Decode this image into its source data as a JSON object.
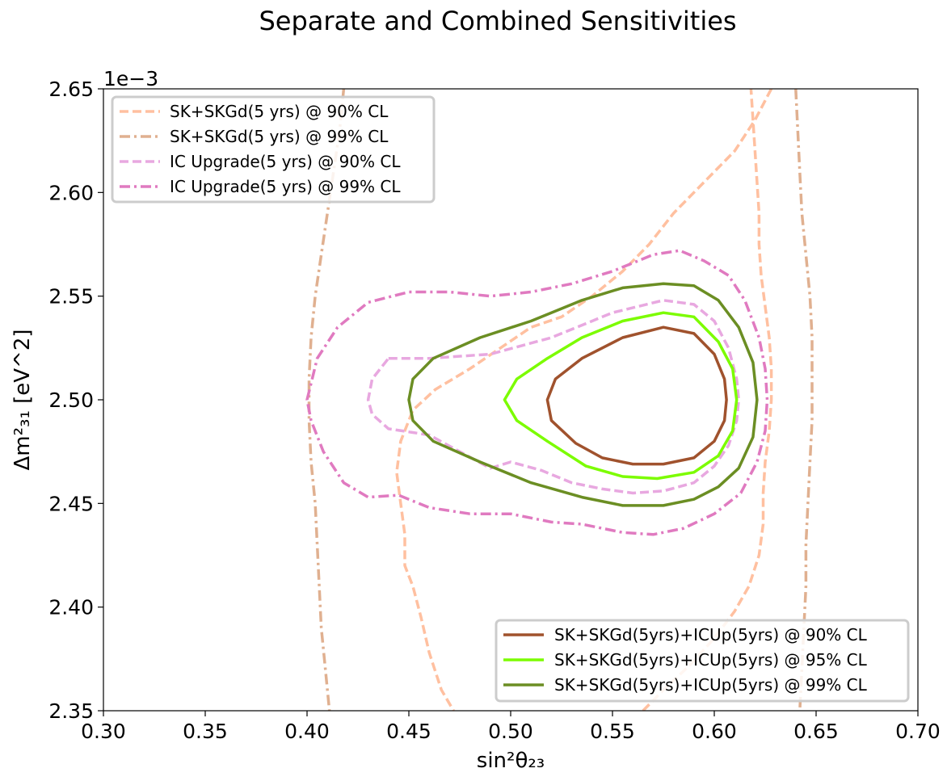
{
  "chart_data": {
    "type": "line",
    "title": "Separate and Combined Sensitivities",
    "xlabel": "sin²θ₂₃",
    "ylabel": "Δm²₃₁ [eV^2]",
    "y_offset_text": "1e−3",
    "xlim": [
      0.3,
      0.7
    ],
    "ylim": [
      2.35,
      2.65
    ],
    "y_scale_factor": 0.001,
    "xticks": [
      "0.30",
      "0.35",
      "0.40",
      "0.45",
      "0.50",
      "0.55",
      "0.60",
      "0.65",
      "0.70"
    ],
    "yticks": [
      "2.35",
      "2.40",
      "2.45",
      "2.50",
      "2.55",
      "2.60",
      "2.65"
    ],
    "grid": false,
    "legends": [
      {
        "placement": "upper left",
        "entries": [
          "SK+SKGd(5 yrs) @ 90% CL",
          "SK+SKGd(5 yrs) @ 99% CL",
          "IC Upgrade(5 yrs) @ 90% CL",
          "IC Upgrade(5 yrs) @ 99% CL"
        ]
      },
      {
        "placement": "lower right",
        "entries": [
          "SK+SKGd(5yrs)+ICUp(5yrs) @ 90% CL",
          "SK+SKGd(5yrs)+ICUp(5yrs) @ 95% CL",
          "SK+SKGd(5yrs)+ICUp(5yrs) @ 99% CL"
        ]
      }
    ],
    "series": [
      {
        "name": "SK+SKGd(5 yrs) @ 90% CL",
        "color": "#ffc0a0",
        "dash": "dashed",
        "closed": false,
        "segments": [
          [
            [
              0.628,
              2.65
            ],
            [
              0.62,
              2.635
            ],
            [
              0.61,
              2.62
            ],
            [
              0.595,
              2.605
            ],
            [
              0.58,
              2.59
            ],
            [
              0.568,
              2.575
            ],
            [
              0.555,
              2.562
            ],
            [
              0.54,
              2.55
            ],
            [
              0.525,
              2.54
            ],
            [
              0.51,
              2.535
            ],
            [
              0.495,
              2.525
            ],
            [
              0.48,
              2.515
            ],
            [
              0.463,
              2.505
            ],
            [
              0.452,
              2.495
            ],
            [
              0.446,
              2.48
            ],
            [
              0.444,
              2.465
            ],
            [
              0.446,
              2.45
            ],
            [
              0.448,
              2.435
            ],
            [
              0.448,
              2.42
            ],
            [
              0.452,
              2.41
            ],
            [
              0.456,
              2.395
            ],
            [
              0.46,
              2.378
            ],
            [
              0.466,
              2.36
            ],
            [
              0.472,
              2.35
            ]
          ],
          [
            [
              0.565,
              2.35
            ],
            [
              0.575,
              2.36
            ],
            [
              0.588,
              2.372
            ],
            [
              0.6,
              2.385
            ],
            [
              0.61,
              2.398
            ],
            [
              0.617,
              2.41
            ],
            [
              0.622,
              2.425
            ],
            [
              0.624,
              2.44
            ],
            [
              0.624,
              2.455
            ],
            [
              0.625,
              2.47
            ],
            [
              0.627,
              2.485
            ],
            [
              0.628,
              2.5
            ],
            [
              0.628,
              2.515
            ],
            [
              0.627,
              2.53
            ],
            [
              0.625,
              2.545
            ],
            [
              0.623,
              2.56
            ],
            [
              0.622,
              2.575
            ],
            [
              0.622,
              2.59
            ],
            [
              0.621,
              2.605
            ],
            [
              0.62,
              2.62
            ],
            [
              0.619,
              2.635
            ],
            [
              0.618,
              2.65
            ]
          ]
        ]
      },
      {
        "name": "SK+SKGd(5 yrs) @ 99% CL",
        "color": "#e0b090",
        "dash": "dashdot",
        "closed": false,
        "segments": [
          [
            [
              0.418,
              2.65
            ],
            [
              0.416,
              2.63
            ],
            [
              0.413,
              2.61
            ],
            [
              0.41,
              2.59
            ],
            [
              0.407,
              2.57
            ],
            [
              0.404,
              2.55
            ],
            [
              0.402,
              2.53
            ],
            [
              0.401,
              2.51
            ],
            [
              0.401,
              2.49
            ],
            [
              0.402,
              2.47
            ],
            [
              0.404,
              2.45
            ],
            [
              0.405,
              2.43
            ],
            [
              0.406,
              2.41
            ],
            [
              0.407,
              2.39
            ],
            [
              0.409,
              2.37
            ],
            [
              0.411,
              2.35
            ]
          ],
          [
            [
              0.64,
              2.65
            ],
            [
              0.641,
              2.63
            ],
            [
              0.642,
              2.61
            ],
            [
              0.643,
              2.59
            ],
            [
              0.645,
              2.57
            ],
            [
              0.647,
              2.55
            ],
            [
              0.648,
              2.53
            ],
            [
              0.648,
              2.51
            ],
            [
              0.648,
              2.49
            ],
            [
              0.647,
              2.47
            ],
            [
              0.646,
              2.45
            ],
            [
              0.645,
              2.43
            ],
            [
              0.645,
              2.41
            ],
            [
              0.644,
              2.39
            ],
            [
              0.643,
              2.37
            ],
            [
              0.642,
              2.35
            ]
          ]
        ]
      },
      {
        "name": "IC Upgrade(5 yrs) @ 90% CL",
        "color": "#e8a8e0",
        "dash": "dashed",
        "closed": true,
        "segments": [
          [
            [
              0.44,
              2.52
            ],
            [
              0.46,
              2.52
            ],
            [
              0.49,
              2.522
            ],
            [
              0.52,
              2.53
            ],
            [
              0.55,
              2.542
            ],
            [
              0.575,
              2.548
            ],
            [
              0.59,
              2.546
            ],
            [
              0.6,
              2.538
            ],
            [
              0.607,
              2.525
            ],
            [
              0.611,
              2.51
            ],
            [
              0.612,
              2.5
            ],
            [
              0.611,
              2.49
            ],
            [
              0.607,
              2.478
            ],
            [
              0.6,
              2.468
            ],
            [
              0.59,
              2.46
            ],
            [
              0.575,
              2.456
            ],
            [
              0.56,
              2.455
            ],
            [
              0.545,
              2.457
            ],
            [
              0.53,
              2.46
            ],
            [
              0.515,
              2.466
            ],
            [
              0.5,
              2.47
            ],
            [
              0.49,
              2.467
            ],
            [
              0.475,
              2.475
            ],
            [
              0.46,
              2.483
            ],
            [
              0.44,
              2.486
            ],
            [
              0.432,
              2.493
            ],
            [
              0.43,
              2.5
            ],
            [
              0.432,
              2.51
            ]
          ]
        ]
      },
      {
        "name": "IC Upgrade(5 yrs) @ 99% CL",
        "color": "#e07ac0",
        "dash": "dashdot",
        "closed": true,
        "segments": [
          [
            [
              0.4,
              2.5
            ],
            [
              0.405,
              2.52
            ],
            [
              0.415,
              2.535
            ],
            [
              0.43,
              2.547
            ],
            [
              0.45,
              2.552
            ],
            [
              0.47,
              2.552
            ],
            [
              0.49,
              2.55
            ],
            [
              0.51,
              2.552
            ],
            [
              0.53,
              2.556
            ],
            [
              0.55,
              2.562
            ],
            [
              0.57,
              2.57
            ],
            [
              0.583,
              2.572
            ],
            [
              0.595,
              2.567
            ],
            [
              0.607,
              2.56
            ],
            [
              0.615,
              2.548
            ],
            [
              0.622,
              2.53
            ],
            [
              0.625,
              2.515
            ],
            [
              0.626,
              2.5
            ],
            [
              0.625,
              2.485
            ],
            [
              0.621,
              2.47
            ],
            [
              0.613,
              2.455
            ],
            [
              0.6,
              2.445
            ],
            [
              0.585,
              2.438
            ],
            [
              0.57,
              2.435
            ],
            [
              0.555,
              2.436
            ],
            [
              0.535,
              2.44
            ],
            [
              0.52,
              2.441
            ],
            [
              0.5,
              2.445
            ],
            [
              0.48,
              2.445
            ],
            [
              0.46,
              2.448
            ],
            [
              0.445,
              2.454
            ],
            [
              0.43,
              2.453
            ],
            [
              0.418,
              2.46
            ],
            [
              0.408,
              2.475
            ],
            [
              0.402,
              2.49
            ]
          ]
        ]
      },
      {
        "name": "SK+SKGd(5yrs)+ICUp(5yrs) @ 90% CL",
        "color": "#a0522d",
        "dash": "solid",
        "closed": true,
        "segments": [
          [
            [
              0.518,
              2.5
            ],
            [
              0.522,
              2.51
            ],
            [
              0.535,
              2.52
            ],
            [
              0.555,
              2.53
            ],
            [
              0.575,
              2.535
            ],
            [
              0.59,
              2.532
            ],
            [
              0.6,
              2.522
            ],
            [
              0.605,
              2.51
            ],
            [
              0.606,
              2.5
            ],
            [
              0.605,
              2.49
            ],
            [
              0.6,
              2.48
            ],
            [
              0.59,
              2.472
            ],
            [
              0.575,
              2.469
            ],
            [
              0.56,
              2.469
            ],
            [
              0.545,
              2.472
            ],
            [
              0.532,
              2.479
            ],
            [
              0.52,
              2.49
            ]
          ]
        ]
      },
      {
        "name": "SK+SKGd(5yrs)+ICUp(5yrs) @ 95% CL",
        "color": "#7cfc00",
        "dash": "solid",
        "closed": true,
        "segments": [
          [
            [
              0.497,
              2.5
            ],
            [
              0.503,
              2.51
            ],
            [
              0.518,
              2.52
            ],
            [
              0.535,
              2.53
            ],
            [
              0.555,
              2.538
            ],
            [
              0.575,
              2.542
            ],
            [
              0.59,
              2.54
            ],
            [
              0.602,
              2.528
            ],
            [
              0.609,
              2.515
            ],
            [
              0.611,
              2.5
            ],
            [
              0.609,
              2.485
            ],
            [
              0.602,
              2.473
            ],
            [
              0.59,
              2.465
            ],
            [
              0.572,
              2.462
            ],
            [
              0.555,
              2.463
            ],
            [
              0.537,
              2.468
            ],
            [
              0.518,
              2.48
            ],
            [
              0.503,
              2.49
            ]
          ]
        ]
      },
      {
        "name": "SK+SKGd(5yrs)+ICUp(5yrs) @ 99% CL",
        "color": "#6b8e23",
        "dash": "solid",
        "closed": true,
        "segments": [
          [
            [
              0.45,
              2.5
            ],
            [
              0.452,
              2.51
            ],
            [
              0.462,
              2.52
            ],
            [
              0.485,
              2.53
            ],
            [
              0.51,
              2.538
            ],
            [
              0.535,
              2.548
            ],
            [
              0.555,
              2.554
            ],
            [
              0.575,
              2.556
            ],
            [
              0.59,
              2.555
            ],
            [
              0.602,
              2.548
            ],
            [
              0.612,
              2.535
            ],
            [
              0.619,
              2.518
            ],
            [
              0.621,
              2.5
            ],
            [
              0.619,
              2.482
            ],
            [
              0.612,
              2.467
            ],
            [
              0.602,
              2.458
            ],
            [
              0.59,
              2.452
            ],
            [
              0.575,
              2.449
            ],
            [
              0.555,
              2.449
            ],
            [
              0.535,
              2.453
            ],
            [
              0.51,
              2.46
            ],
            [
              0.485,
              2.47
            ],
            [
              0.462,
              2.48
            ],
            [
              0.452,
              2.49
            ]
          ]
        ]
      }
    ]
  }
}
